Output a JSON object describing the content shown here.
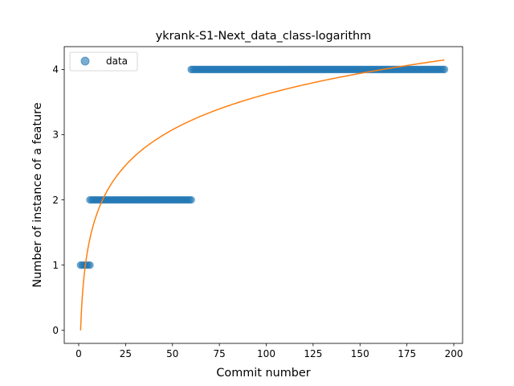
{
  "chart_data": {
    "type": "scatter",
    "title": "ykrank-S1-Next_data_class-logarithm",
    "xlabel": "Commit number",
    "ylabel": "Number of instance of a feature",
    "xlim": [
      -7.7,
      204.7
    ],
    "ylim": [
      -0.2,
      4.35
    ],
    "xticks": [
      0,
      25,
      50,
      75,
      100,
      125,
      150,
      175,
      200
    ],
    "yticks": [
      0,
      1,
      2,
      3,
      4
    ],
    "legend": {
      "entries": [
        "data"
      ],
      "placement": "top-left"
    },
    "grid": false,
    "colors": {
      "data": "#1f77b4",
      "fit": "#ff7f0e"
    },
    "series": [
      {
        "name": "data",
        "kind": "scatter",
        "segments": [
          {
            "x_from": 1,
            "x_to": 6,
            "y": 1
          },
          {
            "x_from": 6,
            "x_to": 60,
            "y": 2
          },
          {
            "x_from": 60,
            "x_to": 195,
            "y": 4
          }
        ]
      },
      {
        "kind": "line",
        "formula": "y = 0.786 * ln(x)",
        "x_from": 1,
        "x_to": 195
      }
    ]
  }
}
